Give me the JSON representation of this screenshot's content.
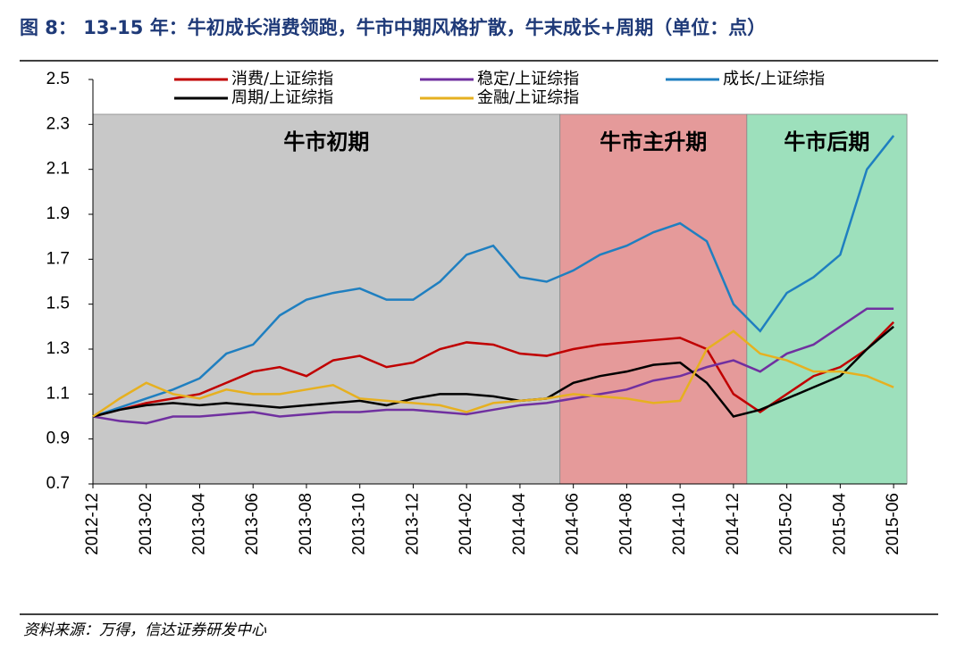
{
  "chart_data": {
    "type": "line",
    "title": "图 8： 13-15 年：牛初成长消费领跑，牛市中期风格扩散，牛末成长+周期（单位：点）",
    "source": "资料来源：万得，信达证券研发中心",
    "x": [
      "2012-12",
      "2013-01",
      "2013-02",
      "2013-03",
      "2013-04",
      "2013-05",
      "2013-06",
      "2013-07",
      "2013-08",
      "2013-09",
      "2013-10",
      "2013-11",
      "2013-12",
      "2014-01",
      "2014-02",
      "2014-03",
      "2014-04",
      "2014-05",
      "2014-06",
      "2014-07",
      "2014-08",
      "2014-09",
      "2014-10",
      "2014-11",
      "2014-12",
      "2015-01",
      "2015-02",
      "2015-03",
      "2015-04",
      "2015-05",
      "2015-06"
    ],
    "xticks": [
      "2012-12",
      "2013-02",
      "2013-04",
      "2013-06",
      "2013-08",
      "2013-10",
      "2013-12",
      "2014-02",
      "2014-04",
      "2014-06",
      "2014-08",
      "2014-10",
      "2014-12",
      "2015-02",
      "2015-04",
      "2015-06"
    ],
    "ylim": [
      0.7,
      2.5
    ],
    "yticks": [
      0.7,
      0.9,
      1.1,
      1.3,
      1.5,
      1.7,
      1.9,
      2.1,
      2.3,
      2.5
    ],
    "regions": [
      {
        "label": "牛市初期",
        "start": "2012-12",
        "end": "2014-05",
        "color": "#c8c8c8"
      },
      {
        "label": "牛市主升期",
        "start": "2014-06",
        "end": "2014-12",
        "color": "#e59a9a"
      },
      {
        "label": "牛市后期",
        "start": "2015-01",
        "end": "2015-06",
        "color": "#9de0bc"
      }
    ],
    "series": [
      {
        "name": "消费/上证综指",
        "color": "#c00000",
        "values": [
          1.0,
          1.03,
          1.06,
          1.08,
          1.1,
          1.15,
          1.2,
          1.22,
          1.18,
          1.25,
          1.27,
          1.22,
          1.24,
          1.3,
          1.33,
          1.32,
          1.28,
          1.27,
          1.3,
          1.32,
          1.33,
          1.34,
          1.35,
          1.3,
          1.1,
          1.02,
          1.1,
          1.18,
          1.22,
          1.3,
          1.42
        ]
      },
      {
        "name": "稳定/上证综指",
        "color": "#7030a0",
        "values": [
          1.0,
          0.98,
          0.97,
          1.0,
          1.0,
          1.01,
          1.02,
          1.0,
          1.01,
          1.02,
          1.02,
          1.03,
          1.03,
          1.02,
          1.01,
          1.03,
          1.05,
          1.06,
          1.08,
          1.1,
          1.12,
          1.16,
          1.18,
          1.22,
          1.25,
          1.2,
          1.28,
          1.32,
          1.4,
          1.48,
          1.48
        ]
      },
      {
        "name": "成长/上证综指",
        "color": "#1f7fc0",
        "values": [
          1.0,
          1.04,
          1.08,
          1.12,
          1.17,
          1.28,
          1.32,
          1.45,
          1.52,
          1.55,
          1.57,
          1.52,
          1.52,
          1.6,
          1.72,
          1.76,
          1.62,
          1.6,
          1.65,
          1.72,
          1.76,
          1.82,
          1.86,
          1.78,
          1.5,
          1.38,
          1.55,
          1.62,
          1.72,
          2.1,
          2.25
        ]
      },
      {
        "name": "周期/上证综指",
        "color": "#000000",
        "values": [
          1.0,
          1.03,
          1.05,
          1.06,
          1.05,
          1.06,
          1.05,
          1.04,
          1.05,
          1.06,
          1.07,
          1.05,
          1.08,
          1.1,
          1.1,
          1.09,
          1.07,
          1.08,
          1.15,
          1.18,
          1.2,
          1.23,
          1.24,
          1.15,
          1.0,
          1.03,
          1.08,
          1.13,
          1.18,
          1.3,
          1.4
        ]
      },
      {
        "name": "金融/上证综指",
        "color": "#e6b020",
        "values": [
          1.0,
          1.08,
          1.15,
          1.1,
          1.08,
          1.12,
          1.1,
          1.1,
          1.12,
          1.14,
          1.08,
          1.07,
          1.06,
          1.05,
          1.02,
          1.06,
          1.07,
          1.08,
          1.1,
          1.09,
          1.08,
          1.06,
          1.07,
          1.3,
          1.38,
          1.28,
          1.25,
          1.2,
          1.2,
          1.18,
          1.13
        ]
      }
    ]
  }
}
